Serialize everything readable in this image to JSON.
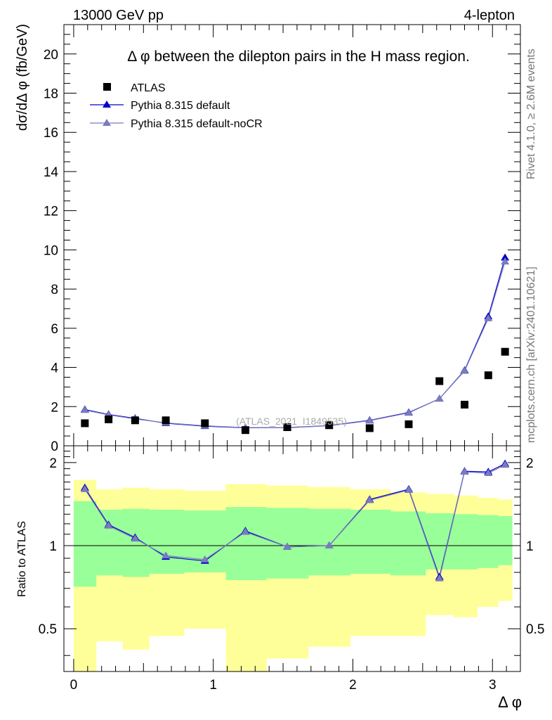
{
  "header": {
    "left_label": "13000 GeV pp",
    "right_label": "4-lepton"
  },
  "side_labels": {
    "rivet": "Rivet 4.1.0, ≥ 2.6M events",
    "source": "mcplots.cern.ch [arXiv:2401.10621]"
  },
  "chart_data": [
    {
      "type": "scatter",
      "title": "Δ φ between the dilepton pairs in the H mass region.",
      "watermark": "(ATLAS_2021_I1849535)",
      "xlabel": "Δ φ",
      "ylabel": "dσ/dΔ φ (fb/GeV)",
      "xlim": [
        -0.07,
        3.2
      ],
      "ylim": [
        0,
        21.5
      ],
      "x_ticks": [
        0,
        1,
        2,
        3
      ],
      "y_ticks": [
        0,
        2,
        4,
        6,
        8,
        10,
        12,
        14,
        16,
        18,
        20
      ],
      "legend_position": "top-left",
      "legend": [
        {
          "name": "ATLAS",
          "marker": "square",
          "color": "#000000"
        },
        {
          "name": "Pythia 8.315 default",
          "marker": "triangle",
          "color": "#0000cc"
        },
        {
          "name": "Pythia 8.315 default-noCR",
          "marker": "triangle",
          "color": "#7b7bbd"
        }
      ],
      "x": [
        0.08,
        0.25,
        0.44,
        0.66,
        0.94,
        1.23,
        1.53,
        1.83,
        2.12,
        2.4,
        2.62,
        2.8,
        2.97,
        3.09
      ],
      "series": [
        {
          "name": "ATLAS",
          "values": [
            1.15,
            1.35,
            1.3,
            1.3,
            1.15,
            0.8,
            0.95,
            1.05,
            0.9,
            1.1,
            3.3,
            2.1,
            3.6,
            4.8
          ]
        },
        {
          "name": "Pythia 8.315 default",
          "values": [
            1.85,
            1.6,
            1.4,
            1.15,
            1.0,
            0.92,
            0.93,
            1.03,
            1.3,
            1.7,
            2.4,
            3.85,
            6.6,
            9.6
          ]
        },
        {
          "name": "Pythia 8.315 default-noCR",
          "values": [
            1.82,
            1.58,
            1.37,
            1.17,
            1.02,
            0.93,
            0.92,
            1.02,
            1.28,
            1.68,
            2.4,
            3.82,
            6.5,
            9.4
          ]
        }
      ]
    },
    {
      "type": "line",
      "ylabel": "Ratio to ATLAS",
      "xlim": [
        -0.07,
        3.2
      ],
      "ylim": [
        0.35,
        2.3
      ],
      "y_ticks": [
        0.5,
        1,
        2
      ],
      "y_tick_labels": [
        "0.5",
        "1",
        "2"
      ],
      "bin_edges": [
        0.0,
        0.16,
        0.35,
        0.54,
        0.79,
        1.09,
        1.38,
        1.68,
        1.98,
        2.27,
        2.52,
        2.72,
        2.89,
        3.04,
        3.14
      ],
      "band_yellow_low": [
        0.35,
        0.45,
        0.42,
        0.47,
        0.5,
        0.35,
        0.39,
        0.43,
        0.47,
        0.47,
        0.56,
        0.55,
        0.6,
        0.63
      ],
      "band_yellow_high": [
        1.73,
        1.6,
        1.62,
        1.6,
        1.58,
        1.67,
        1.65,
        1.63,
        1.6,
        1.56,
        1.54,
        1.52,
        1.49,
        1.47
      ],
      "band_green_low": [
        0.71,
        0.78,
        0.77,
        0.79,
        0.8,
        0.75,
        0.76,
        0.78,
        0.79,
        0.78,
        0.82,
        0.82,
        0.83,
        0.85
      ],
      "band_green_high": [
        1.45,
        1.35,
        1.36,
        1.35,
        1.34,
        1.38,
        1.37,
        1.36,
        1.35,
        1.33,
        1.31,
        1.3,
        1.29,
        1.28
      ],
      "x": [
        0.08,
        0.25,
        0.44,
        0.66,
        0.94,
        1.23,
        1.53,
        1.83,
        2.12,
        2.4,
        2.62,
        2.8,
        2.97,
        3.09
      ],
      "series": [
        {
          "name": "Pythia 8.315 default",
          "values": [
            1.62,
            1.19,
            1.07,
            0.91,
            0.88,
            1.13,
            0.99,
            1.0,
            1.47,
            1.6,
            0.77,
            1.86,
            1.85,
            1.98
          ]
        },
        {
          "name": "Pythia 8.315 default-noCR",
          "values": [
            1.6,
            1.18,
            1.06,
            0.92,
            0.89,
            1.12,
            0.99,
            1.0,
            1.46,
            1.59,
            0.76,
            1.85,
            1.83,
            1.96
          ]
        }
      ]
    }
  ]
}
